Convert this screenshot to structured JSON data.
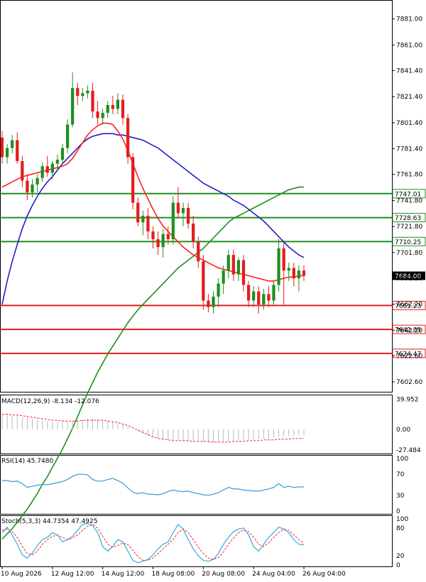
{
  "chart_data": {
    "type": "candlestick",
    "main": {
      "ylim": [
        7595,
        7895
      ],
      "y_ticks": [
        "7881.00",
        "7861.00",
        "7841.40",
        "7821.40",
        "7801.40",
        "7781.40",
        "7761.80",
        "7741.80",
        "7721.80",
        "7701.80",
        "7682.20",
        "7662.20",
        "7642.20",
        "7622.60",
        "7602.60"
      ],
      "levels": [
        {
          "value": 7747.01,
          "label": "7747.01",
          "color": "#1f8f1f"
        },
        {
          "value": 7728.63,
          "label": "7728.63",
          "color": "#1f8f1f"
        },
        {
          "value": 7710.25,
          "label": "7710.25",
          "color": "#1f8f1f"
        },
        {
          "value": 7661.23,
          "label": "7661.23",
          "color": "#e51c1c"
        },
        {
          "value": 7642.85,
          "label": "7642.85",
          "color": "#e51c1c"
        },
        {
          "value": 7624.47,
          "label": "7624.47",
          "color": "#e51c1c"
        }
      ],
      "current_price": {
        "value": 7684.0,
        "label": "7684.00"
      },
      "candles": [
        [
          7790,
          7795,
          7770,
          7775
        ],
        [
          7775,
          7785,
          7770,
          7782
        ],
        [
          7782,
          7792,
          7778,
          7788
        ],
        [
          7788,
          7794,
          7770,
          7772
        ],
        [
          7772,
          7776,
          7752,
          7757
        ],
        [
          7757,
          7762,
          7742,
          7748
        ],
        [
          7748,
          7758,
          7744,
          7754
        ],
        [
          7754,
          7762,
          7748,
          7759
        ],
        [
          7759,
          7771,
          7756,
          7768
        ],
        [
          7768,
          7776,
          7760,
          7763
        ],
        [
          7763,
          7772,
          7758,
          7770
        ],
        [
          7770,
          7777,
          7764,
          7773
        ],
        [
          7773,
          7785,
          7770,
          7782
        ],
        [
          7782,
          7804,
          7778,
          7800
        ],
        [
          7800,
          7840,
          7798,
          7828
        ],
        [
          7828,
          7832,
          7815,
          7822
        ],
        [
          7822,
          7828,
          7818,
          7824
        ],
        [
          7824,
          7830,
          7820,
          7826
        ],
        [
          7826,
          7832,
          7805,
          7810
        ],
        [
          7810,
          7818,
          7800,
          7805
        ],
        [
          7805,
          7812,
          7800,
          7809
        ],
        [
          7809,
          7818,
          7805,
          7815
        ],
        [
          7815,
          7822,
          7808,
          7812
        ],
        [
          7812,
          7824,
          7808,
          7819
        ],
        [
          7819,
          7823,
          7800,
          7805
        ],
        [
          7805,
          7808,
          7770,
          7775
        ],
        [
          7775,
          7778,
          7735,
          7740
        ],
        [
          7740,
          7744,
          7722,
          7725
        ],
        [
          7725,
          7734,
          7715,
          7730
        ],
        [
          7730,
          7736,
          7712,
          7718
        ],
        [
          7718,
          7722,
          7705,
          7712
        ],
        [
          7712,
          7718,
          7700,
          7706
        ],
        [
          7706,
          7720,
          7698,
          7716
        ],
        [
          7716,
          7722,
          7708,
          7712
        ],
        [
          7712,
          7745,
          7708,
          7740
        ],
        [
          7740,
          7752,
          7728,
          7732
        ],
        [
          7732,
          7740,
          7722,
          7736
        ],
        [
          7736,
          7740,
          7720,
          7724
        ],
        [
          7724,
          7730,
          7705,
          7710
        ],
        [
          7710,
          7714,
          7690,
          7695
        ],
        [
          7695,
          7700,
          7658,
          7665
        ],
        [
          7665,
          7670,
          7656,
          7660
        ],
        [
          7660,
          7672,
          7655,
          7668
        ],
        [
          7668,
          7682,
          7660,
          7678
        ],
        [
          7678,
          7692,
          7670,
          7688
        ],
        [
          7688,
          7704,
          7682,
          7700
        ],
        [
          7700,
          7704,
          7680,
          7685
        ],
        [
          7685,
          7698,
          7680,
          7696
        ],
        [
          7696,
          7700,
          7672,
          7677
        ],
        [
          7677,
          7680,
          7660,
          7665
        ],
        [
          7665,
          7676,
          7660,
          7672
        ],
        [
          7672,
          7676,
          7655,
          7662
        ],
        [
          7662,
          7674,
          7658,
          7670
        ],
        [
          7670,
          7676,
          7660,
          7665
        ],
        [
          7665,
          7680,
          7662,
          7677
        ],
        [
          7677,
          7712,
          7672,
          7705
        ],
        [
          7705,
          7710,
          7662,
          7688
        ],
        [
          7688,
          7694,
          7680,
          7690
        ],
        [
          7690,
          7694,
          7676,
          7682
        ],
        [
          7682,
          7692,
          7672,
          7688
        ],
        [
          7688,
          7692,
          7680,
          7684
        ]
      ],
      "ma_fast": [
        7752,
        7754,
        7756,
        7758,
        7760,
        7761,
        7762,
        7763,
        7764,
        7765,
        7766,
        7767,
        7768,
        7770,
        7774,
        7780,
        7786,
        7792,
        7796,
        7799,
        7801,
        7801,
        7800,
        7795,
        7789,
        7780,
        7770,
        7760,
        7751,
        7743,
        7735,
        7728,
        7722,
        7718,
        7714,
        7710,
        7706,
        7703,
        7700,
        7698,
        7696,
        7694,
        7692,
        7690,
        7689,
        7688,
        7687,
        7686,
        7685,
        7684,
        7683,
        7682,
        7681,
        7680,
        7680,
        7681,
        7682,
        7683,
        7683,
        7684,
        7684
      ],
      "ma_mid": [
        7662,
        7680,
        7695,
        7708,
        7720,
        7730,
        7738,
        7745,
        7751,
        7756,
        7760,
        7765,
        7770,
        7774,
        7778,
        7782,
        7786,
        7789,
        7791,
        7792,
        7793,
        7793,
        7793,
        7792,
        7792,
        7791,
        7790,
        7789,
        7788,
        7786,
        7784,
        7782,
        7779,
        7776,
        7773,
        7770,
        7767,
        7764,
        7761,
        7758,
        7755,
        7753,
        7751,
        7749,
        7747,
        7745,
        7742,
        7740,
        7738,
        7735,
        7732,
        7729,
        7726,
        7722,
        7718,
        7714,
        7710,
        7706,
        7703,
        7700,
        7698
      ],
      "ma_slow": [
        7482,
        7486,
        7490,
        7495,
        7500,
        7505,
        7511,
        7517,
        7524,
        7530,
        7537,
        7544,
        7551,
        7559,
        7567,
        7576,
        7585,
        7594,
        7602,
        7610,
        7617,
        7624,
        7630,
        7636,
        7642,
        7648,
        7653,
        7658,
        7662,
        7666,
        7670,
        7674,
        7678,
        7682,
        7686,
        7690,
        7693,
        7696,
        7699,
        7702,
        7705,
        7709,
        7713,
        7717,
        7721,
        7725,
        7728,
        7730,
        7732,
        7734,
        7736,
        7738,
        7740,
        7742,
        7744,
        7746,
        7748,
        7750,
        7751,
        7752,
        7752
      ]
    },
    "macd": {
      "label": "MACD(12,26,9) -8.134 -12.076",
      "ylim": [
        -32,
        45
      ],
      "y_ticks": [
        "39.952",
        "0.00",
        "-27.484"
      ],
      "hist": [
        19,
        19,
        18,
        17,
        16,
        15,
        14,
        13,
        12,
        11,
        10,
        10,
        10,
        10,
        11,
        12,
        13,
        14,
        14,
        13,
        12,
        11,
        10,
        8,
        6,
        3,
        0,
        -3,
        -6,
        -8,
        -10,
        -12,
        -13,
        -14,
        -14,
        -14,
        -14,
        -15,
        -15,
        -15,
        -16,
        -17,
        -17,
        -17,
        -16,
        -16,
        -15,
        -15,
        -14,
        -14,
        -13,
        -13,
        -12,
        -12,
        -11,
        -10,
        -9,
        -9,
        -8,
        -8,
        -8
      ],
      "signal": [
        20,
        20,
        19,
        19,
        18,
        17,
        16,
        15,
        14,
        13,
        12,
        12,
        11,
        11,
        11,
        11,
        12,
        12,
        12,
        12,
        12,
        11,
        10,
        9,
        7,
        5,
        2,
        -1,
        -4,
        -7,
        -10,
        -12,
        -13,
        -14,
        -15,
        -15,
        -15,
        -15,
        -16,
        -16,
        -16,
        -16,
        -17,
        -17,
        -17,
        -17,
        -16,
        -16,
        -16,
        -15,
        -15,
        -15,
        -14,
        -14,
        -14,
        -13,
        -13,
        -13,
        -12,
        -12,
        -12
      ]
    },
    "rsi": {
      "label": "RSI(14) 45.7480",
      "ylim": [
        0,
        100
      ],
      "y_ticks": [
        "100",
        "70",
        "30",
        "0"
      ],
      "values": [
        58,
        58,
        56,
        57,
        52,
        45,
        47,
        49,
        51,
        50,
        52,
        54,
        56,
        60,
        66,
        70,
        70,
        69,
        60,
        57,
        57,
        60,
        62,
        58,
        53,
        44,
        36,
        33,
        35,
        32,
        32,
        31,
        33,
        37,
        40,
        38,
        37,
        38,
        35,
        33,
        31,
        30,
        32,
        35,
        40,
        45,
        42,
        42,
        40,
        39,
        38,
        38,
        40,
        42,
        45,
        52,
        45,
        47,
        45,
        46,
        46
      ]
    },
    "stoch": {
      "label": "Stoch(5,3,3) 44.7354 47.4925",
      "ylim": [
        0,
        100
      ],
      "y_ticks": [
        "100",
        "80",
        "20",
        "0"
      ],
      "k": [
        70,
        82,
        65,
        45,
        22,
        15,
        26,
        42,
        55,
        60,
        70,
        65,
        50,
        55,
        62,
        75,
        88,
        90,
        85,
        70,
        40,
        30,
        40,
        55,
        50,
        30,
        10,
        5,
        8,
        12,
        22,
        35,
        45,
        50,
        70,
        88,
        78,
        55,
        35,
        20,
        10,
        8,
        12,
        25,
        45,
        60,
        72,
        78,
        80,
        65,
        40,
        30,
        45,
        60,
        70,
        82,
        78,
        70,
        55,
        45,
        44
      ],
      "d": [
        75,
        78,
        72,
        60,
        40,
        25,
        22,
        30,
        45,
        55,
        62,
        65,
        60,
        55,
        58,
        65,
        75,
        84,
        88,
        80,
        62,
        45,
        38,
        42,
        48,
        44,
        32,
        18,
        10,
        10,
        15,
        25,
        35,
        45,
        55,
        70,
        78,
        70,
        55,
        38,
        25,
        15,
        12,
        16,
        28,
        45,
        58,
        70,
        76,
        72,
        60,
        45,
        40,
        48,
        60,
        70,
        78,
        75,
        65,
        55,
        47
      ]
    },
    "x_ticks": [
      {
        "index": 0,
        "label": "10 Aug 2026"
      },
      {
        "index": 10,
        "label": "12 Aug 12:00"
      },
      {
        "index": 20,
        "label": "14 Aug 12:00"
      },
      {
        "index": 30,
        "label": "18 Aug 08:00"
      },
      {
        "index": 40,
        "label": "20 Aug 08:00"
      },
      {
        "index": 50,
        "label": "24 Aug 04:00"
      },
      {
        "index": 60,
        "label": "26 Aug 04:00"
      }
    ],
    "colors": {
      "up": "#1f8f1f",
      "down": "#e51c1c",
      "ma_fast": "#ff2020",
      "ma_mid": "#2020cc",
      "ma_slow": "#1f8f1f",
      "macd_hist": "#b8b8b8",
      "macd_signal": "#ff2020",
      "rsi": "#3399dd",
      "stoch_k": "#33aadd",
      "stoch_d": "#ff2020"
    }
  }
}
